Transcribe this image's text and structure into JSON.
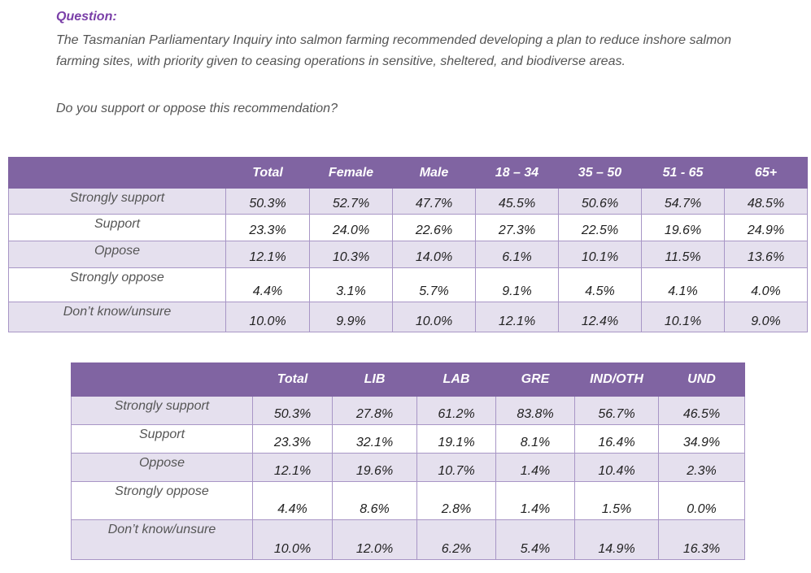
{
  "question": {
    "heading": "Question:",
    "text": "The Tasmanian Parliamentary Inquiry into salmon farming recommended developing a plan to reduce inshore salmon farming sites, with priority given to ceasing operations in sensitive, sheltered, and biodiverse areas.",
    "ask": "Do you support or oppose this recommendation?"
  },
  "table1": {
    "headers": [
      "",
      "Total",
      "Female",
      "Male",
      "18 – 34",
      "35 – 50",
      "51 - 65",
      "65+"
    ],
    "rows": [
      {
        "label": "Strongly support",
        "values": [
          "50.3%",
          "52.7%",
          "47.7%",
          "45.5%",
          "50.6%",
          "54.7%",
          "48.5%"
        ]
      },
      {
        "label": "Support",
        "values": [
          "23.3%",
          "24.0%",
          "22.6%",
          "27.3%",
          "22.5%",
          "19.6%",
          "24.9%"
        ]
      },
      {
        "label": "Oppose",
        "values": [
          "12.1%",
          "10.3%",
          "14.0%",
          "6.1%",
          "10.1%",
          "11.5%",
          "13.6%"
        ]
      },
      {
        "label": "Strongly oppose",
        "values": [
          "4.4%",
          "3.1%",
          "5.7%",
          "9.1%",
          "4.5%",
          "4.1%",
          "4.0%"
        ]
      },
      {
        "label": "Don’t know/unsure",
        "values": [
          "10.0%",
          "9.9%",
          "10.0%",
          "12.1%",
          "12.4%",
          "10.1%",
          "9.0%"
        ]
      }
    ]
  },
  "table2": {
    "headers": [
      "",
      "Total",
      "LIB",
      "LAB",
      "GRE",
      "IND/OTH",
      "UND"
    ],
    "rows": [
      {
        "label": "Strongly support",
        "values": [
          "50.3%",
          "27.8%",
          "61.2%",
          "83.8%",
          "56.7%",
          "46.5%"
        ]
      },
      {
        "label": "Support",
        "values": [
          "23.3%",
          "32.1%",
          "19.1%",
          "8.1%",
          "16.4%",
          "34.9%"
        ]
      },
      {
        "label": "Oppose",
        "values": [
          "12.1%",
          "19.6%",
          "10.7%",
          "1.4%",
          "10.4%",
          "2.3%"
        ]
      },
      {
        "label": "Strongly oppose",
        "values": [
          "4.4%",
          "8.6%",
          "2.8%",
          "1.4%",
          "1.5%",
          "0.0%"
        ]
      },
      {
        "label": "Don’t know/unsure",
        "values": [
          "10.0%",
          "12.0%",
          "6.2%",
          "5.4%",
          "14.9%",
          "16.3%"
        ]
      }
    ]
  }
}
